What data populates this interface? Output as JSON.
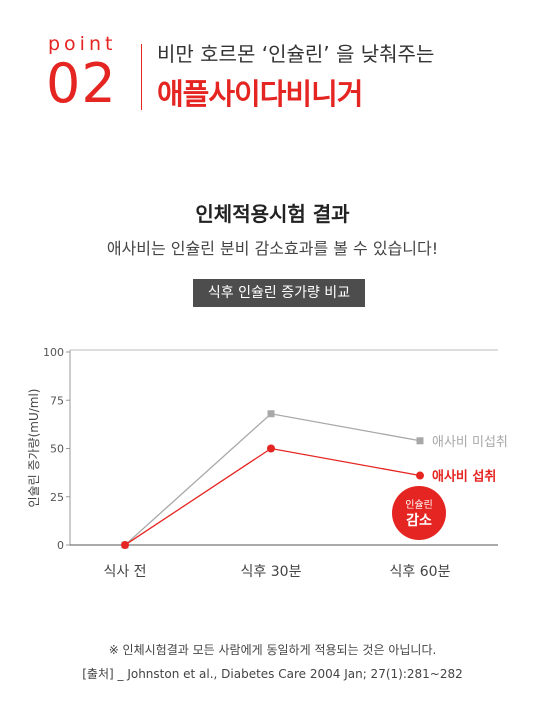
{
  "header": {
    "point_word": "point",
    "point_number": "02",
    "subtitle": "비만 호르몬 ‘인슐린’ 을 낮춰주는",
    "headline": "애플사이다비니거"
  },
  "section": {
    "title": "인체적용시험 결과",
    "description": "애사비는 인슐린 분비 감소효과를 볼 수 있습니다!",
    "badge": "식후 인슐린 증가량 비교"
  },
  "chart_data": {
    "type": "line",
    "categories": [
      "식사 전",
      "식후 30분",
      "식후 60분"
    ],
    "ylabel": "인슐린 증가량(mU/ml)",
    "ylim": [
      0,
      100
    ],
    "yticks": [
      "0",
      "25",
      "50",
      "75",
      "100"
    ],
    "grid": false,
    "series": [
      {
        "name": "애사비 미섭취",
        "values": [
          0,
          68,
          54
        ],
        "color": "#a8a8a8"
      },
      {
        "name": "애사비 섭취",
        "values": [
          0,
          50,
          36
        ],
        "color": "#e52521"
      }
    ],
    "annotation": {
      "line1": "인슐린",
      "line2": "감소",
      "color": "#e52521"
    }
  },
  "footer": {
    "note": "※ 인체시험결과 모든 사람에게 동일하게 적용되는 것은 아닙니다.",
    "source": "[출처] _  Johnston et al., Diabetes Care 2004 Jan; 27(1):281~282"
  }
}
